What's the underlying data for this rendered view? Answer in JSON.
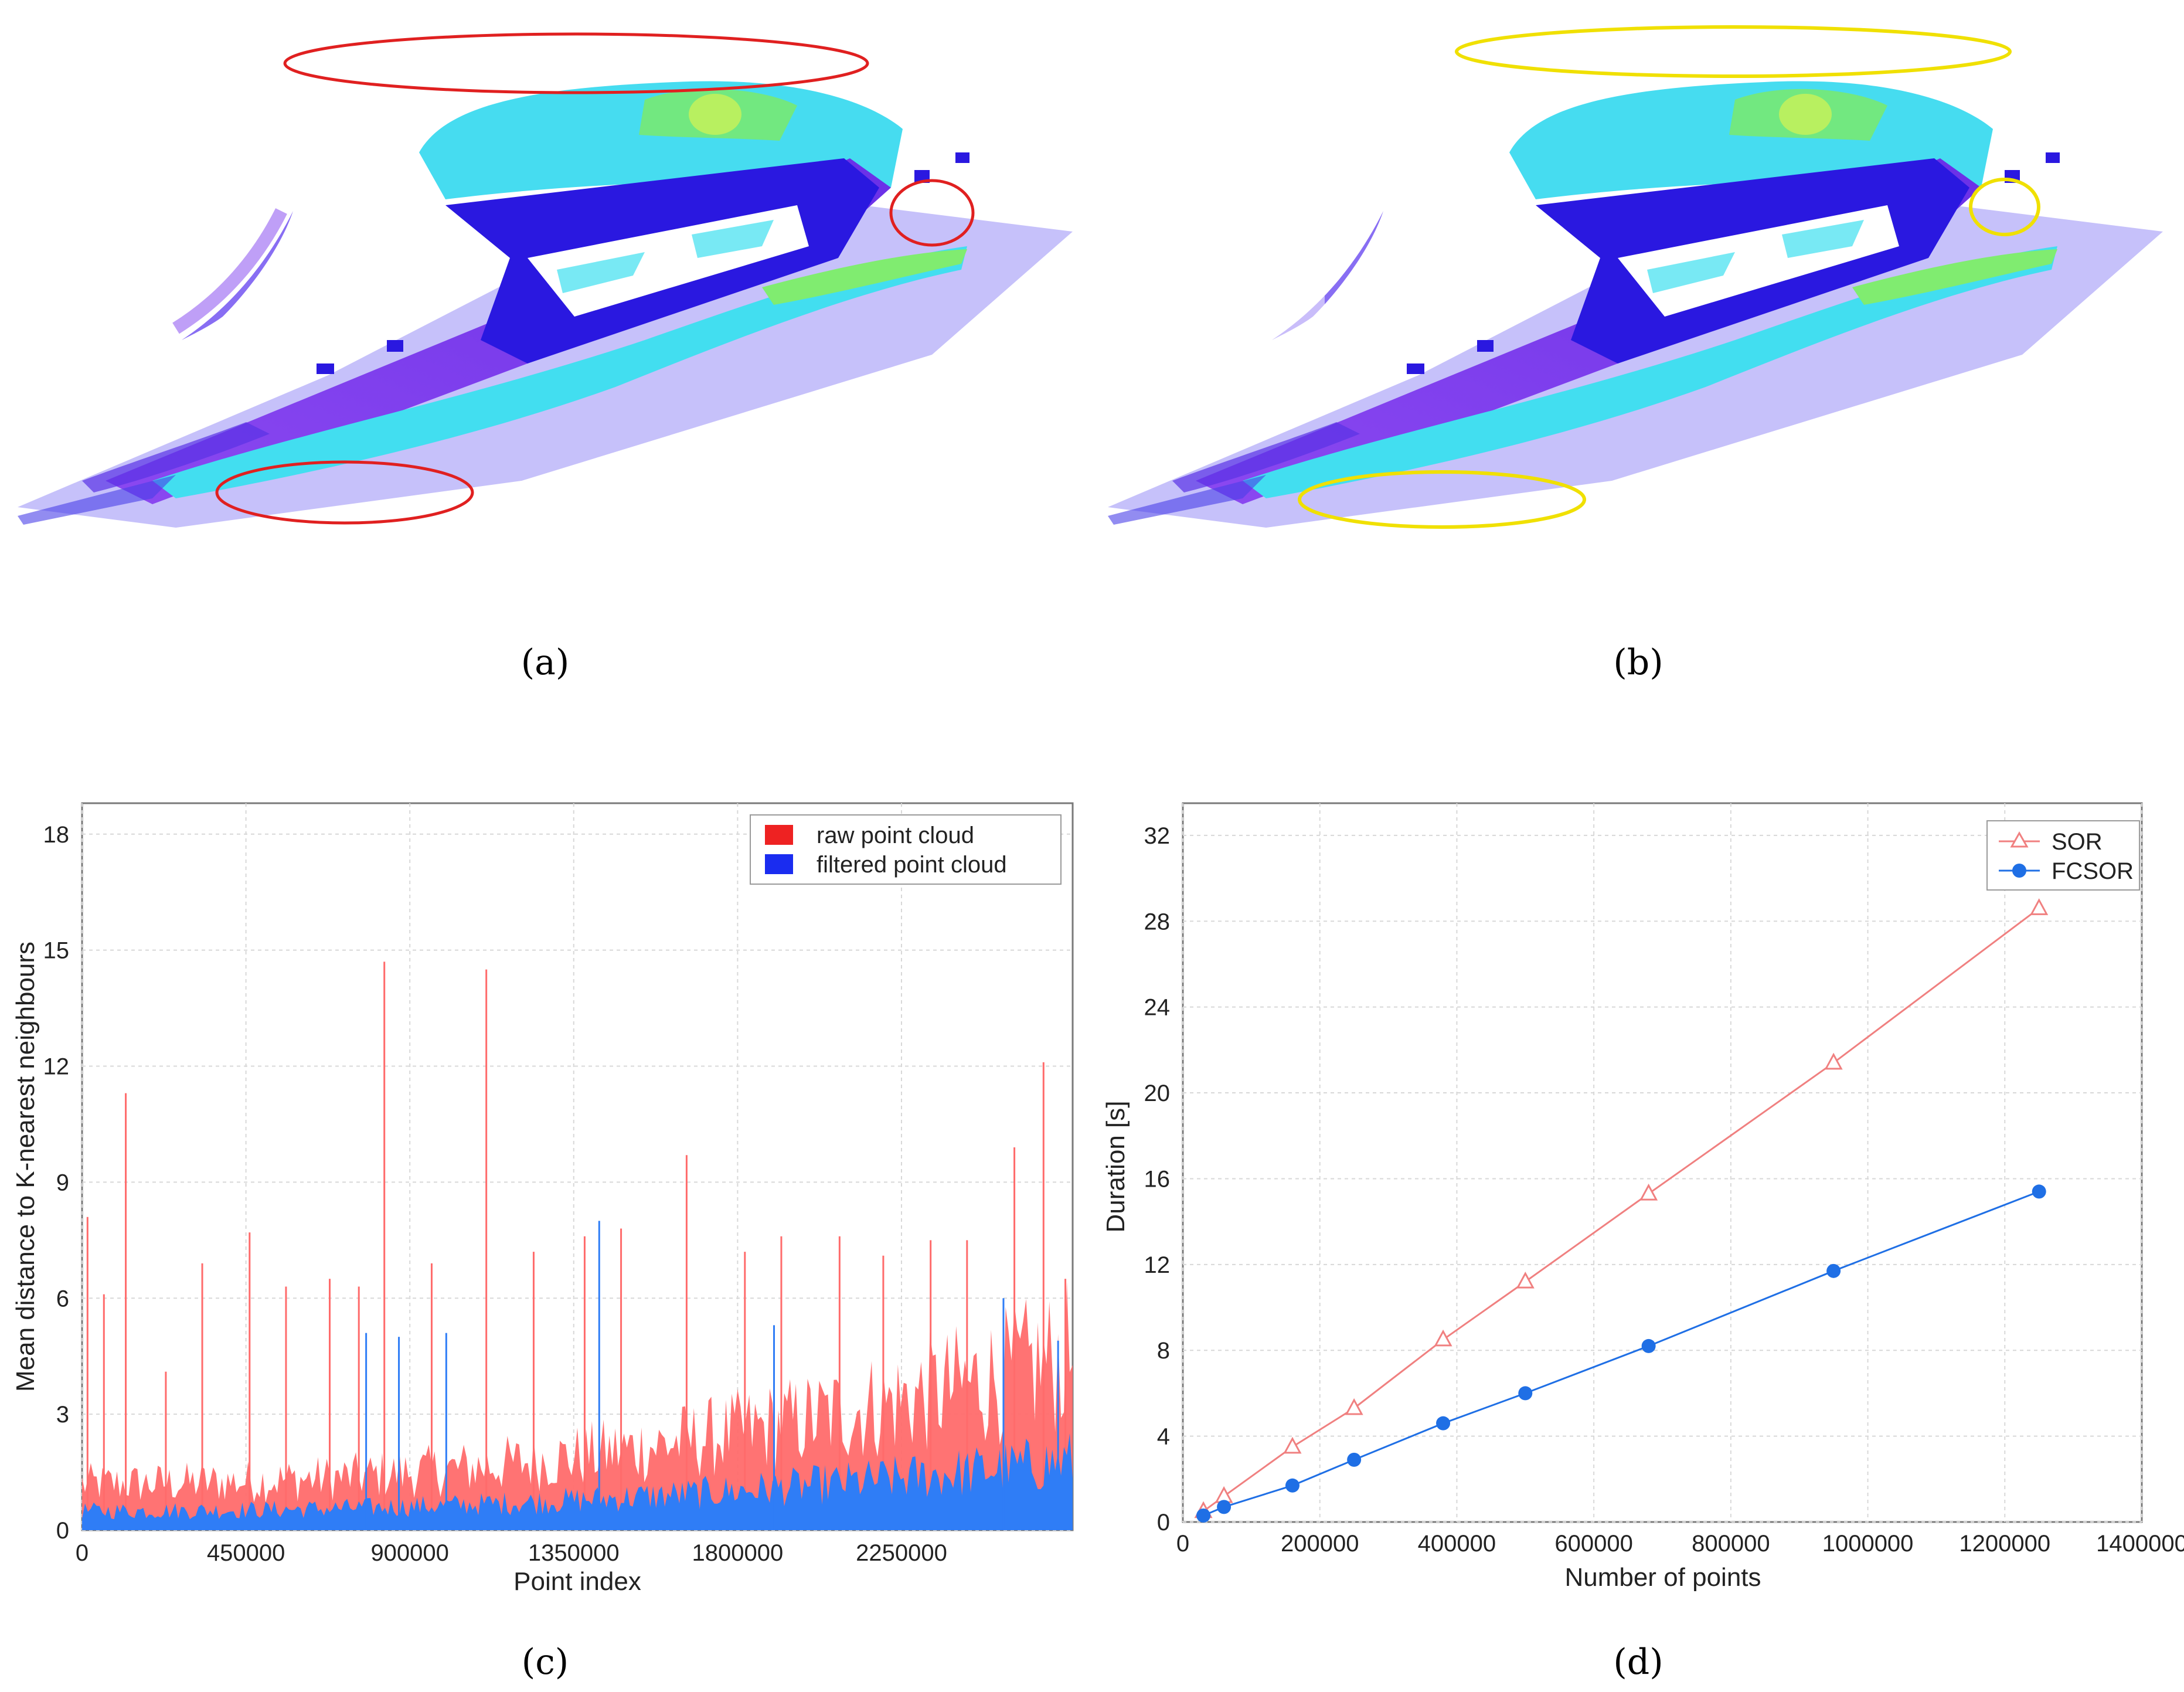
{
  "panels": {
    "a": {
      "label": "(a)"
    },
    "b": {
      "label": "(b)"
    },
    "c": {
      "label": "(c)"
    },
    "d": {
      "label": "(d)"
    }
  },
  "colors": {
    "raw": "#ff6b6b",
    "filtered": "#2f7df6",
    "red_ellipse": "#e02020",
    "yellow_ellipse": "#f0e000",
    "sor": "#f08080",
    "fcsor": "#1f6fe5",
    "cloud_purple": "#7a3cf0",
    "cloud_blue": "#2a20e0",
    "cloud_cyan": "#3fe0f0",
    "cloud_green": "#60e070"
  },
  "chart_data": [
    {
      "type": "area",
      "id": "c",
      "xlabel": "Point index",
      "ylabel": "Mean distance to K-nearest neighbours",
      "xlim": [
        0,
        2720000
      ],
      "ylim": [
        0,
        18.8
      ],
      "xticks": [
        0,
        450000,
        900000,
        1350000,
        1800000,
        2250000
      ],
      "yticks": [
        0,
        3,
        6,
        9,
        12,
        15,
        18
      ],
      "legend": [
        "raw point cloud",
        "filtered point cloud"
      ],
      "legend_position": "top-right",
      "grid": true,
      "series": [
        {
          "name": "raw point cloud",
          "baseline_start": 1.2,
          "baseline_end": 4.5,
          "spikes": [
            [
              15000,
              8.1
            ],
            [
              60000,
              6.1
            ],
            [
              120000,
              11.3
            ],
            [
              230000,
              4.1
            ],
            [
              330000,
              6.9
            ],
            [
              460000,
              7.7
            ],
            [
              560000,
              6.3
            ],
            [
              680000,
              6.5
            ],
            [
              760000,
              6.3
            ],
            [
              830000,
              14.7
            ],
            [
              960000,
              6.9
            ],
            [
              1110000,
              14.5
            ],
            [
              1240000,
              7.2
            ],
            [
              1380000,
              7.6
            ],
            [
              1480000,
              7.8
            ],
            [
              1660000,
              9.7
            ],
            [
              1820000,
              7.2
            ],
            [
              1920000,
              7.6
            ],
            [
              2080000,
              7.6
            ],
            [
              2200000,
              7.1
            ],
            [
              2330000,
              7.5
            ],
            [
              2430000,
              7.5
            ],
            [
              2560000,
              9.9
            ],
            [
              2640000,
              12.1
            ],
            [
              2700000,
              6.5
            ]
          ]
        },
        {
          "name": "filtered point cloud",
          "baseline_start": 0.5,
          "baseline_end": 1.8,
          "spikes": [
            [
              780000,
              5.1
            ],
            [
              870000,
              5.0
            ],
            [
              1000000,
              5.1
            ],
            [
              1420000,
              8.0
            ],
            [
              1900000,
              5.3
            ],
            [
              2530000,
              6.0
            ],
            [
              2680000,
              4.9
            ]
          ]
        }
      ]
    },
    {
      "type": "line",
      "id": "d",
      "xlabel": "Number of points",
      "ylabel": "Duration [s]",
      "xlim": [
        0,
        1400000
      ],
      "ylim": [
        0,
        33.5
      ],
      "xticks": [
        0,
        200000,
        400000,
        600000,
        800000,
        1000000,
        1200000,
        1400000
      ],
      "yticks": [
        0,
        4,
        8,
        12,
        16,
        20,
        24,
        28,
        32
      ],
      "legend": [
        "SOR",
        "FCSOR"
      ],
      "legend_position": "top-right",
      "grid": true,
      "x": [
        30000,
        60000,
        160000,
        250000,
        380000,
        500000,
        680000,
        950000,
        1250000
      ],
      "series": [
        {
          "name": "SOR",
          "marker": "triangle",
          "values": [
            0.5,
            1.2,
            3.5,
            5.3,
            8.5,
            11.2,
            15.3,
            21.4,
            28.6
          ]
        },
        {
          "name": "FCSOR",
          "marker": "circle",
          "values": [
            0.3,
            0.7,
            1.7,
            2.9,
            4.6,
            6.0,
            8.2,
            11.7,
            15.4
          ]
        }
      ]
    }
  ]
}
